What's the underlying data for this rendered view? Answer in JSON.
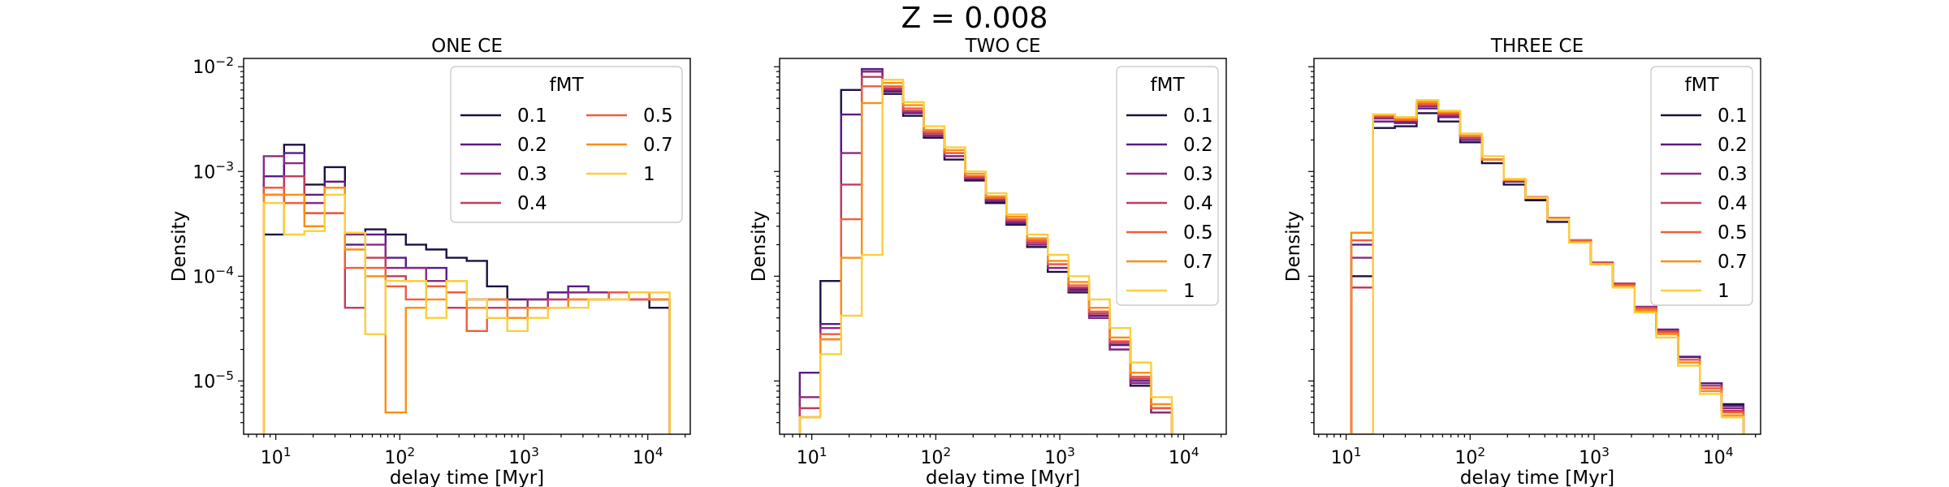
{
  "figure": {
    "suptitle": "Z = 0.008"
  },
  "colors": {
    "0.1": "#1c1044",
    "0.2": "#5a1a86",
    "0.3": "#8a2a80",
    "0.4": "#c43c5d",
    "0.5": "#ee5e3e",
    "0.7": "#fb8e12",
    "1": "#fbcf3b"
  },
  "chart_data": [
    {
      "type": "histogram-step",
      "title": "ONE CE",
      "xlabel": "delay time [Myr]",
      "ylabel": "Density",
      "xscale": "log",
      "yscale": "log",
      "xlim": [
        5.5,
        22000
      ],
      "ylim": [
        3.1e-06,
        0.012
      ],
      "xticks": [
        "10^1",
        "10^2",
        "10^3",
        "10^4"
      ],
      "yticks": [
        "10^-5",
        "10^-4",
        "10^-3",
        "10^-2"
      ],
      "legend": {
        "title": "fMT",
        "position": "top-right",
        "columns": 2
      },
      "series": [
        {
          "name": "0.1",
          "x0": 8,
          "x1": 15000,
          "values": [
            0.00025,
            0.0018,
            0.00075,
            0.0011,
            0.00026,
            0.00028,
            0.00025,
            0.0002,
            0.00018,
            0.00015,
            0.00014,
            8e-05,
            6e-05,
            6e-05,
            7e-05,
            7e-05,
            7e-05,
            7e-05,
            6e-05,
            5e-05
          ]
        },
        {
          "name": "0.2",
          "x0": 8,
          "x1": 15000,
          "values": [
            0.0009,
            0.0015,
            0.0006,
            0.0008,
            0.0002,
            0.00025,
            0.00015,
            0.00012,
            0.00012,
            9e-05,
            6e-05,
            6e-05,
            6e-05,
            6e-05,
            7e-05,
            8e-05,
            7e-05,
            7e-05,
            7e-05,
            6e-05
          ]
        },
        {
          "name": "0.3",
          "x0": 8,
          "x1": 15000,
          "values": [
            0.0014,
            0.0012,
            0.0005,
            0.0007,
            0.00025,
            0.0002,
            0.00012,
            0.00012,
            9e-05,
            7e-05,
            6e-05,
            6e-05,
            5e-05,
            6e-05,
            6e-05,
            7e-05,
            7e-05,
            7e-05,
            6e-05,
            6e-05
          ]
        },
        {
          "name": "0.4",
          "x0": 8,
          "x1": 15000,
          "values": [
            0.0006,
            0.0009,
            0.0004,
            0.0004,
            5e-05,
            0.00015,
            0.0001,
            9e-05,
            8e-05,
            5e-05,
            5e-05,
            5e-05,
            5e-05,
            5e-05,
            6e-05,
            6e-05,
            6e-05,
            7e-05,
            6e-05,
            6e-05
          ]
        },
        {
          "name": "0.5",
          "x0": 8,
          "x1": 15000,
          "values": [
            0.0007,
            0.0005,
            0.0004,
            0.0004,
            0.00012,
            0.00012,
            8e-05,
            6e-05,
            8e-05,
            7e-05,
            3e-05,
            4e-05,
            5e-05,
            5e-05,
            5e-05,
            6e-05,
            6e-05,
            7e-05,
            6e-05,
            6e-05
          ]
        },
        {
          "name": "0.7",
          "x0": 8,
          "x1": 15000,
          "values": [
            0.0006,
            0.0006,
            0.0003,
            0.0007,
            0.00018,
            0.0001,
            5e-06,
            5e-05,
            6e-05,
            9e-05,
            5e-05,
            6e-05,
            4e-05,
            5e-05,
            5e-05,
            6e-05,
            6e-05,
            6e-05,
            7e-05,
            6e-05
          ]
        },
        {
          "name": "1",
          "x0": 8,
          "x1": 15000,
          "values": [
            0.0005,
            0.00025,
            0.00027,
            0.0006,
            0.00026,
            2.8e-05,
            9e-05,
            9e-05,
            4e-05,
            9e-05,
            6e-05,
            4e-05,
            3e-05,
            4e-05,
            5e-05,
            5e-05,
            6e-05,
            6e-05,
            7e-05,
            7e-05
          ]
        }
      ]
    },
    {
      "type": "histogram-step",
      "title": "TWO CE",
      "xlabel": "delay time [Myr]",
      "ylabel": "Density",
      "xscale": "log",
      "yscale": "log",
      "xlim": [
        5.5,
        22000
      ],
      "ylim": [
        3.1e-06,
        0.012
      ],
      "xticks": [
        "10^1",
        "10^2",
        "10^3",
        "10^4"
      ],
      "yticks": [],
      "legend": {
        "title": "fMT",
        "position": "top-right",
        "columns": 1
      },
      "series": [
        {
          "name": "0.1",
          "x0": 8,
          "x1": 8000,
          "values": [
            4.5e-06,
            9e-05,
            0.006,
            0.009,
            0.0055,
            0.0034,
            0.0021,
            0.0013,
            0.00082,
            0.0005,
            0.00031,
            0.00019,
            0.00011,
            7e-05,
            4e-05,
            2e-05,
            9e-06,
            5e-06
          ]
        },
        {
          "name": "0.2",
          "x0": 8,
          "x1": 8000,
          "values": [
            1.2e-05,
            3.5e-05,
            0.0035,
            0.0095,
            0.0058,
            0.0036,
            0.0022,
            0.0014,
            0.00085,
            0.00052,
            0.00032,
            0.0002,
            0.00012,
            7.5e-05,
            4.2e-05,
            2.2e-05,
            1e-05,
            5.5e-06
          ]
        },
        {
          "name": "0.3",
          "x0": 8,
          "x1": 8000,
          "values": [
            7e-06,
            3.2e-05,
            0.0015,
            0.009,
            0.006,
            0.0037,
            0.0022,
            0.0014,
            0.00086,
            0.00053,
            0.00033,
            0.0002,
            0.00012,
            7.2e-05,
            4e-05,
            2e-05,
            9.5e-06,
            5e-06
          ]
        },
        {
          "name": "0.4",
          "x0": 8,
          "x1": 8000,
          "values": [
            5.5e-06,
            2.5e-05,
            0.00075,
            0.008,
            0.0062,
            0.0038,
            0.0023,
            0.0015,
            0.00088,
            0.00055,
            0.00034,
            0.00021,
            0.00013,
            7.8e-05,
            4.4e-05,
            2.3e-05,
            1.05e-05,
            5.5e-06
          ]
        },
        {
          "name": "0.5",
          "x0": 8,
          "x1": 8000,
          "values": [
            4.5e-06,
            2.8e-05,
            0.00035,
            0.0065,
            0.0065,
            0.004,
            0.0024,
            0.0015,
            0.0009,
            0.00056,
            0.00035,
            0.00022,
            0.00013,
            8.2e-05,
            4.6e-05,
            2.4e-05,
            1.1e-05,
            5.5e-06
          ]
        },
        {
          "name": "0.7",
          "x0": 8,
          "x1": 8000,
          "values": [
            4.5e-06,
            2.5e-05,
            0.00015,
            0.0045,
            0.007,
            0.0043,
            0.0025,
            0.0016,
            0.00095,
            0.00058,
            0.00037,
            0.00023,
            0.00014,
            8.8e-05,
            5e-05,
            2.6e-05,
            1.2e-05,
            6e-06
          ]
        },
        {
          "name": "1",
          "x0": 8,
          "x1": 8000,
          "values": [
            4.5e-06,
            1.8e-05,
            4.2e-05,
            0.00016,
            0.0075,
            0.0046,
            0.0027,
            0.0017,
            0.001,
            0.00062,
            0.00039,
            0.00025,
            0.00016,
            0.0001,
            6e-05,
            3.2e-05,
            1.5e-05,
            7e-06
          ]
        }
      ]
    },
    {
      "type": "histogram-step",
      "title": "THREE CE",
      "xlabel": "delay time [Myr]",
      "ylabel": "Density",
      "xscale": "log",
      "yscale": "log",
      "xlim": [
        5.5,
        22000
      ],
      "ylim": [
        3.1e-06,
        0.012
      ],
      "xticks": [
        "10^1",
        "10^2",
        "10^3",
        "10^4"
      ],
      "yticks": [],
      "legend": {
        "title": "fMT",
        "position": "top-right",
        "columns": 1
      },
      "series": [
        {
          "name": "0.1",
          "x0": 11,
          "x1": 16000,
          "values": [
            0.0001,
            0.0026,
            0.0027,
            0.0036,
            0.003,
            0.0019,
            0.0012,
            0.00075,
            0.00053,
            0.00033,
            0.00021,
            0.00013,
            8.2e-05,
            5e-05,
            3e-05,
            1.7e-05,
            9.5e-06,
            6e-06
          ]
        },
        {
          "name": "0.2",
          "x0": 11,
          "x1": 16000,
          "values": [
            0.0002,
            0.003,
            0.0029,
            0.004,
            0.0033,
            0.002,
            0.0013,
            0.0008,
            0.00055,
            0.00035,
            0.00022,
            0.00013,
            8.5e-05,
            5.1e-05,
            3.1e-05,
            1.7e-05,
            9.5e-06,
            5.8e-06
          ]
        },
        {
          "name": "0.3",
          "x0": 11,
          "x1": 16000,
          "values": [
            0.00015,
            0.0032,
            0.003,
            0.0042,
            0.0034,
            0.0021,
            0.0013,
            0.00082,
            0.00056,
            0.00036,
            0.00022,
            0.000135,
            8.5e-05,
            5.1e-05,
            3e-05,
            1.6e-05,
            9e-06,
            5.5e-06
          ]
        },
        {
          "name": "0.4",
          "x0": 11,
          "x1": 16000,
          "values": [
            7.8e-05,
            0.0033,
            0.0031,
            0.0043,
            0.0035,
            0.0021,
            0.0013,
            0.00082,
            0.00057,
            0.00036,
            0.00022,
            0.000135,
            8.5e-05,
            5e-05,
            3e-05,
            1.6e-05,
            9e-06,
            5.2e-06
          ]
        },
        {
          "name": "0.5",
          "x0": 11,
          "x1": 16000,
          "values": [
            0.00022,
            0.0034,
            0.0031,
            0.0044,
            0.0036,
            0.0022,
            0.0013,
            0.00083,
            0.00057,
            0.00036,
            0.00022,
            0.000132,
            8.2e-05,
            4.9e-05,
            2.9e-05,
            1.6e-05,
            8.5e-06,
            5e-06
          ]
        },
        {
          "name": "0.7",
          "x0": 11,
          "x1": 16000,
          "values": [
            0.00026,
            0.0035,
            0.0032,
            0.0046,
            0.0037,
            0.0022,
            0.0013,
            0.00083,
            0.00056,
            0.00035,
            0.00021,
            0.00013,
            8e-05,
            4.7e-05,
            2.8e-05,
            1.5e-05,
            8e-06,
            4.7e-06
          ]
        },
        {
          "name": "1",
          "x0": 11,
          "x1": 16000,
          "values": [
            3.1e-06,
            0.0035,
            0.0033,
            0.0048,
            0.0038,
            0.0023,
            0.0014,
            0.00085,
            0.00056,
            0.00035,
            0.00021,
            0.00013,
            7.8e-05,
            4.5e-05,
            2.6e-05,
            1.4e-05,
            7.5e-06,
            4.5e-06
          ]
        }
      ]
    }
  ]
}
